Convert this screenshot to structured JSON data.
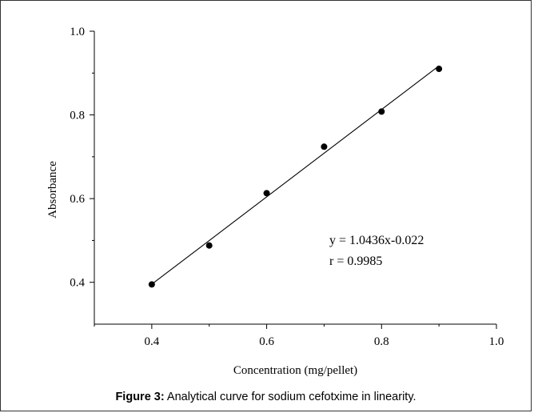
{
  "chart_data": {
    "type": "scatter",
    "xlabel": "Concentration (mg/pellet)",
    "ylabel": "Absorbance",
    "xlim": [
      0.3,
      1.0
    ],
    "ylim": [
      0.3,
      1.0
    ],
    "xticks": [
      0.4,
      0.6,
      0.8,
      1.0
    ],
    "xtick_labels": [
      "0.4",
      "0.6",
      "0.8",
      "1.0"
    ],
    "yticks": [
      0.4,
      0.6,
      0.8,
      1.0
    ],
    "ytick_labels": [
      "0.4",
      "0.6",
      "0.8",
      "1.0"
    ],
    "x_minor_ticks": [
      0.3,
      0.5,
      0.7,
      0.9
    ],
    "y_minor_ticks": [
      0.5,
      0.7,
      0.9
    ],
    "series": [
      {
        "x": [
          0.4,
          0.5,
          0.6,
          0.7,
          0.8,
          0.9
        ],
        "y": [
          0.395,
          0.488,
          0.613,
          0.724,
          0.808,
          0.91
        ]
      }
    ],
    "fit_line": {
      "slope": 1.0436,
      "intercept": -0.022,
      "x_range": [
        0.4,
        0.9
      ]
    },
    "annotations": [
      "y = 1.0436x-0.022",
      "r = 0.9985"
    ],
    "grid": false,
    "legend": "none"
  },
  "caption": {
    "label": "Figure 3:",
    "text": " Analytical curve for sodium cefotxime in linearity."
  }
}
